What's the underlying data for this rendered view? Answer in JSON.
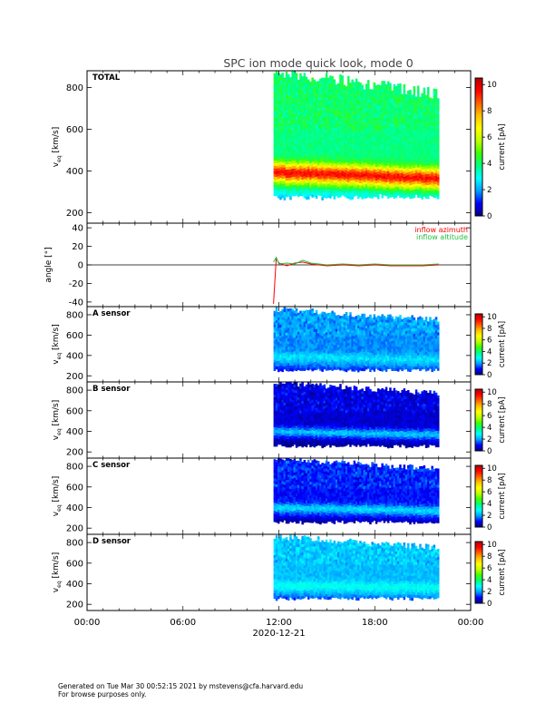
{
  "title": "SPC ion mode quick look, mode 0",
  "footer": {
    "line1": "Generated on Tue Mar 30 00:52:15 2021 by mstevens@cfa.harvard.edu",
    "line2": "For browse purposes only."
  },
  "colorbar": {
    "label": "current [pA]",
    "colors": [
      "#000080",
      "#0000ff",
      "#00a0ff",
      "#00ffff",
      "#00ff80",
      "#40ff00",
      "#c0ff00",
      "#ffff00",
      "#ffc000",
      "#ff6000",
      "#ff0000",
      "#b00000"
    ]
  },
  "chart_data": [
    {
      "type": "heatmap",
      "panel_label": "TOTAL",
      "ylabel": "v",
      "ylabel_sub": "eq",
      "ylabel_unit": "[km/s]",
      "ylim": [
        150,
        880
      ],
      "yticks": [
        "200",
        "400",
        "600",
        "800"
      ],
      "ytick_values": [
        200,
        400,
        600,
        800
      ],
      "colorbar_ticks": [
        "0",
        "2",
        "4",
        "6",
        "8",
        "10"
      ],
      "clim": [
        0,
        10.5
      ],
      "data_x_range": [
        "11:40",
        "22:00"
      ],
      "v_low_edge": 280,
      "v_high_edge": 880,
      "beam_center": 400,
      "beam_peak": 9.5,
      "bg_level": 3.8,
      "edge_level": 2.0
    },
    {
      "type": "line",
      "ylabel": "angle [°]",
      "ylim": [
        -45,
        45
      ],
      "yticks": [
        "-40",
        "-20",
        "0",
        "20",
        "40"
      ],
      "ytick_values": [
        -40,
        -20,
        0,
        20,
        40
      ],
      "series": [
        {
          "name": "inflow azimuth",
          "color": "#ff0000",
          "x": [
            "11:40",
            "11:50",
            "12:00",
            "12:30",
            "13:00",
            "13:30",
            "14:00",
            "14:30",
            "15:00",
            "16:00",
            "17:00",
            "18:00",
            "19:00",
            "20:00",
            "21:00",
            "22:00"
          ],
          "values": [
            -42,
            7,
            2,
            -1,
            2,
            3,
            1,
            0,
            -1,
            0,
            -1,
            0,
            -1,
            -1,
            -1,
            0
          ]
        },
        {
          "name": "inflow altitude",
          "color": "#20c040",
          "x": [
            "11:40",
            "11:50",
            "12:00",
            "12:30",
            "13:00",
            "13:30",
            "14:00",
            "14:30",
            "15:00",
            "16:00",
            "17:00",
            "18:00",
            "19:00",
            "20:00",
            "21:00",
            "22:00"
          ],
          "values": [
            3,
            8,
            1,
            2,
            1,
            5,
            2,
            1,
            0,
            1,
            0,
            1,
            0,
            0,
            0,
            1
          ]
        }
      ]
    },
    {
      "type": "heatmap",
      "panel_label": "A sensor",
      "ylabel": "v",
      "ylabel_sub": "eq",
      "ylabel_unit": "[km/s]",
      "ylim": [
        140,
        880
      ],
      "yticks": [
        "200",
        "400",
        "600",
        "800"
      ],
      "ytick_values": [
        200,
        400,
        600,
        800
      ],
      "colorbar_ticks": [
        "0",
        "2",
        "4",
        "6",
        "8",
        "10"
      ],
      "clim": [
        0,
        10.5
      ],
      "data_x_range": [
        "11:40",
        "22:00"
      ],
      "v_low_edge": 270,
      "v_high_edge": 860,
      "beam_center": 400,
      "beam_peak": 2.6,
      "bg_level": 1.8,
      "edge_level": 1.0
    },
    {
      "type": "heatmap",
      "panel_label": "B sensor",
      "ylabel": "v",
      "ylabel_sub": "eq",
      "ylabel_unit": "[km/s]",
      "ylim": [
        140,
        880
      ],
      "yticks": [
        "200",
        "400",
        "600",
        "800"
      ],
      "ytick_values": [
        200,
        400,
        600,
        800
      ],
      "colorbar_ticks": [
        "0",
        "2",
        "4",
        "6",
        "8",
        "10"
      ],
      "clim": [
        0,
        10.5
      ],
      "data_x_range": [
        "11:40",
        "22:00"
      ],
      "v_low_edge": 270,
      "v_high_edge": 880,
      "beam_center": 410,
      "beam_peak": 2.3,
      "bg_level": 0.6,
      "edge_level": 0.1
    },
    {
      "type": "heatmap",
      "panel_label": "C sensor",
      "ylabel": "v",
      "ylabel_sub": "eq",
      "ylabel_unit": "[km/s]",
      "ylim": [
        140,
        880
      ],
      "yticks": [
        "200",
        "400",
        "600",
        "800"
      ],
      "ytick_values": [
        200,
        400,
        600,
        800
      ],
      "colorbar_ticks": [
        "0",
        "2",
        "4",
        "6",
        "8",
        "10"
      ],
      "clim": [
        0,
        10.5
      ],
      "data_x_range": [
        "11:40",
        "22:00"
      ],
      "v_low_edge": 270,
      "v_high_edge": 880,
      "beam_center": 410,
      "beam_peak": 2.5,
      "bg_level": 1.0,
      "edge_level": 0.2
    },
    {
      "type": "heatmap",
      "panel_label": "D sensor",
      "ylabel": "v",
      "ylabel_sub": "eq",
      "ylabel_unit": "[km/s]",
      "ylim": [
        140,
        880
      ],
      "yticks": [
        "200",
        "400",
        "600",
        "800"
      ],
      "ytick_values": [
        200,
        400,
        600,
        800
      ],
      "colorbar_ticks": [
        "0",
        "2",
        "4",
        "6",
        "8",
        "10"
      ],
      "clim": [
        0,
        10.5
      ],
      "data_x_range": [
        "11:40",
        "22:00"
      ],
      "v_low_edge": 270,
      "v_high_edge": 860,
      "beam_center": 400,
      "beam_peak": 3.0,
      "bg_level": 2.2,
      "edge_level": 1.2
    }
  ],
  "x_axis": {
    "range": [
      "00:00",
      "24:00"
    ],
    "ticks": [
      "00:00",
      "06:00",
      "12:00",
      "18:00",
      "00:00"
    ],
    "tick_hours": [
      0,
      6,
      12,
      18,
      24
    ],
    "date_label": "2020-12-21"
  }
}
